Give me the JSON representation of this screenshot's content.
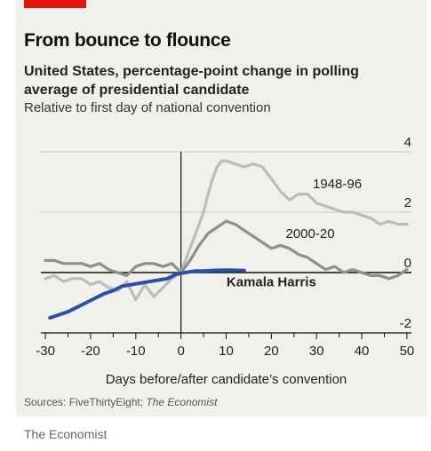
{
  "header": {
    "title": "From bounce to flounce",
    "subtitle": "United States, percentage-point change in polling average of presidential candidate",
    "note": "Relative to first day of national convention"
  },
  "source": {
    "prefix": "Sources: FiveThirtyEight; ",
    "italic": "The Economist"
  },
  "footer": {
    "credit": "The Economist"
  },
  "colors": {
    "accent": "#e3120b",
    "series_1948": "#bdbdb7",
    "series_2000": "#8f8f89",
    "harris": "#2e4fa8",
    "panel": "#f0f0ec"
  },
  "chart_data": {
    "type": "line",
    "xlabel": "Days before/after candidate’s convention",
    "ylabel": "",
    "xlim": [
      -31,
      51
    ],
    "ylim": [
      -2,
      4
    ],
    "x_ticks": [
      -30,
      -20,
      -10,
      0,
      10,
      20,
      30,
      40,
      50
    ],
    "y_ticks": [
      4,
      2,
      0,
      -2
    ],
    "y_tick_labels": [
      "4",
      "2",
      "0",
      "-2"
    ],
    "grid": true,
    "zero_line_x": 0,
    "series": [
      {
        "name": "1948-96",
        "label_pos": [
          40,
          2.8
        ],
        "label_anchor": "end",
        "label_weight": "normal",
        "color_key": "series_1948",
        "x": [
          -30,
          -28,
          -26,
          -24,
          -22,
          -20,
          -18,
          -16,
          -14,
          -12,
          -10,
          -8,
          -6,
          -4,
          -2,
          0,
          1,
          2,
          3,
          4,
          5,
          6,
          7,
          8,
          9,
          10,
          12,
          14,
          16,
          18,
          20,
          22,
          24,
          26,
          28,
          30,
          32,
          34,
          36,
          38,
          40,
          42,
          44,
          46,
          48,
          50
        ],
        "values": [
          -0.2,
          -0.1,
          -0.3,
          -0.2,
          -0.2,
          -0.4,
          -0.3,
          -0.5,
          -0.6,
          -0.3,
          -0.9,
          -0.4,
          -0.8,
          -0.5,
          -0.2,
          0.0,
          0.4,
          0.8,
          1.2,
          1.6,
          2.0,
          2.6,
          3.1,
          3.5,
          3.7,
          3.7,
          3.6,
          3.5,
          3.6,
          3.5,
          3.1,
          2.7,
          2.4,
          2.6,
          2.6,
          2.3,
          2.2,
          2.1,
          2.0,
          2.0,
          1.9,
          1.8,
          1.6,
          1.7,
          1.6,
          1.6
        ]
      },
      {
        "name": "2000-20",
        "label_pos": [
          34,
          1.15
        ],
        "label_anchor": "end",
        "label_weight": "normal",
        "color_key": "series_2000",
        "x": [
          -30,
          -28,
          -26,
          -24,
          -22,
          -20,
          -18,
          -16,
          -14,
          -12,
          -10,
          -8,
          -6,
          -4,
          -2,
          0,
          2,
          4,
          6,
          8,
          10,
          12,
          14,
          16,
          18,
          20,
          22,
          24,
          26,
          28,
          30,
          32,
          34,
          36,
          38,
          40,
          42,
          44,
          46,
          48,
          50
        ],
        "values": [
          0.4,
          0.4,
          0.3,
          0.3,
          0.3,
          0.2,
          0.3,
          0.1,
          0.0,
          -0.1,
          0.2,
          0.3,
          0.3,
          0.2,
          0.3,
          0.0,
          0.4,
          0.9,
          1.3,
          1.5,
          1.7,
          1.6,
          1.4,
          1.2,
          1.0,
          0.8,
          0.9,
          0.8,
          0.6,
          0.5,
          0.3,
          0.1,
          0.2,
          0.0,
          0.1,
          0.0,
          -0.1,
          -0.1,
          -0.2,
          -0.1,
          0.1
        ]
      },
      {
        "name": "Kamala Harris",
        "label_pos": [
          20,
          -0.45
        ],
        "label_anchor": "middle",
        "label_weight": "bold",
        "color_key": "harris",
        "x": [
          -29,
          -27,
          -25,
          -23,
          -21,
          -19,
          -17,
          -15,
          -13,
          -11,
          -9,
          -7,
          -5,
          -3,
          -1,
          1,
          3,
          5,
          7,
          9,
          11,
          13,
          14
        ],
        "values": [
          -1.5,
          -1.4,
          -1.3,
          -1.15,
          -1.0,
          -0.85,
          -0.7,
          -0.6,
          -0.45,
          -0.4,
          -0.35,
          -0.3,
          -0.25,
          -0.2,
          -0.05,
          0.0,
          0.05,
          0.05,
          0.07,
          0.08,
          0.08,
          0.07,
          0.07
        ]
      }
    ]
  }
}
